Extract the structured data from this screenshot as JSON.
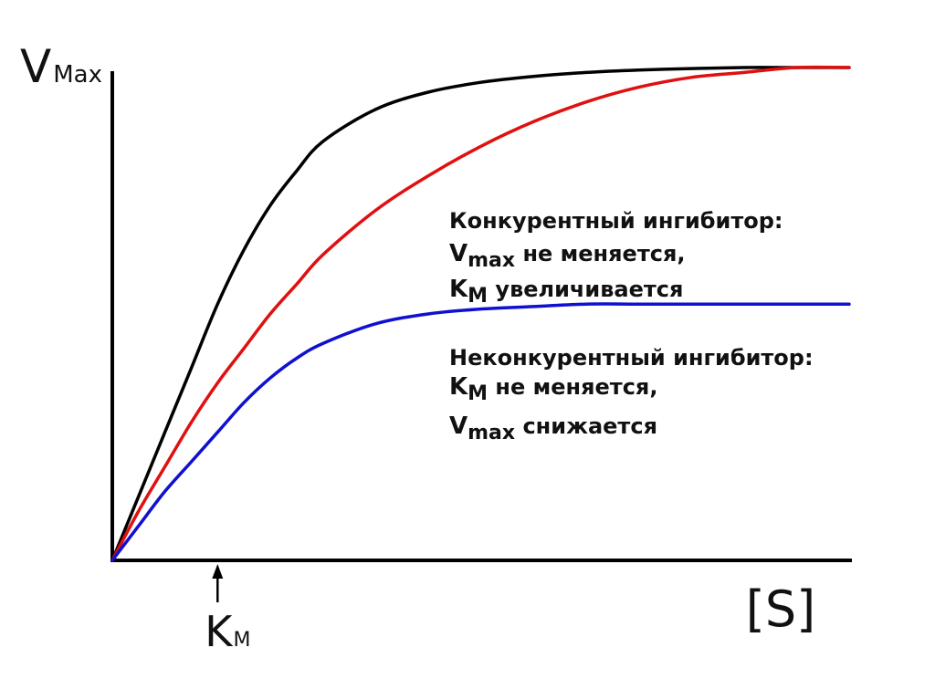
{
  "chart_data": {
    "type": "line",
    "grid": false,
    "y_label_main": "V",
    "y_label_sub": "Max",
    "x_label": "[S]",
    "km_marker": {
      "main": "K",
      "sub": "M",
      "x": 1
    },
    "xlim": [
      0,
      7
    ],
    "ylim": [
      0,
      1
    ],
    "series": [
      {
        "color": "#000000",
        "x": [
          0,
          0.25,
          0.5,
          0.75,
          1,
          1.25,
          1.5,
          1.75,
          2,
          2.5,
          3,
          3.5,
          4,
          4.5,
          5,
          5.5,
          6,
          6.5,
          7
        ],
        "values": [
          0,
          0.13,
          0.26,
          0.39,
          0.52,
          0.63,
          0.72,
          0.79,
          0.85,
          0.915,
          0.95,
          0.97,
          0.982,
          0.99,
          0.995,
          0.998,
          1.0,
          1.0,
          1.0
        ]
      },
      {
        "color": "#e01010",
        "x": [
          0,
          0.25,
          0.5,
          0.75,
          1,
          1.25,
          1.5,
          1.75,
          2,
          2.5,
          3,
          3.5,
          4,
          4.5,
          5,
          5.5,
          6,
          6.5,
          7
        ],
        "values": [
          0,
          0.1,
          0.19,
          0.28,
          0.36,
          0.43,
          0.5,
          0.56,
          0.62,
          0.71,
          0.78,
          0.84,
          0.89,
          0.93,
          0.96,
          0.98,
          0.99,
          1.0,
          1.0
        ]
      },
      {
        "color": "#1010d0",
        "x": [
          0,
          0.25,
          0.5,
          0.75,
          1,
          1.25,
          1.5,
          1.75,
          2,
          2.5,
          3,
          3.5,
          4,
          4.5,
          5,
          5.5,
          6,
          6.5,
          7
        ],
        "values": [
          0,
          0.07,
          0.14,
          0.2,
          0.26,
          0.32,
          0.37,
          0.41,
          0.44,
          0.48,
          0.5,
          0.51,
          0.515,
          0.52,
          0.52,
          0.52,
          0.52,
          0.52,
          0.52
        ]
      }
    ],
    "annotations": [
      {
        "title": "Конкурентный ингибитор:",
        "lines": [
          {
            "main": "V",
            "sub": "max",
            "rest": " не меняется,"
          },
          {
            "main": "K",
            "sub": "M",
            "rest": " увеличивается"
          }
        ]
      },
      {
        "title": "Неконкурентный ингибитор:",
        "lines": [
          {
            "main": "K",
            "sub": "M",
            "rest": " не меняется,"
          },
          {
            "main": "V",
            "sub": "max",
            "rest": " снижается"
          }
        ]
      }
    ]
  }
}
